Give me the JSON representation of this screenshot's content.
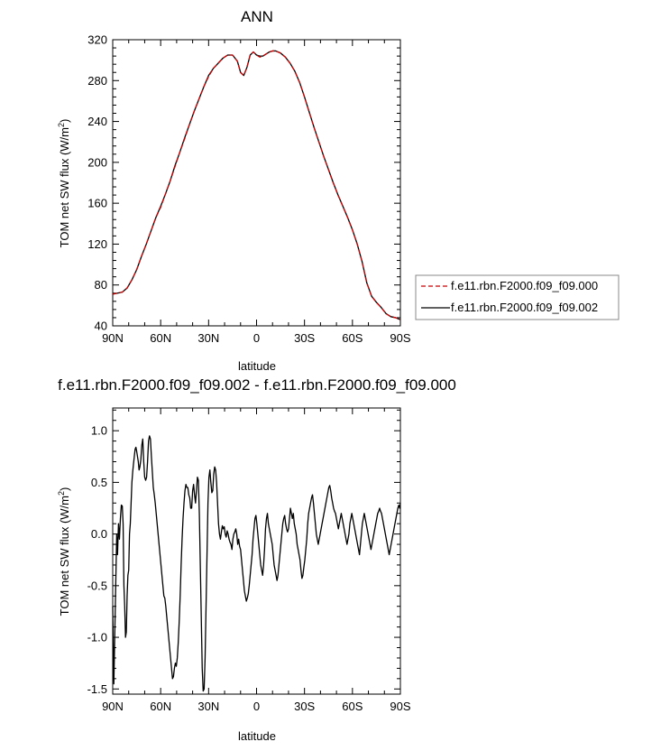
{
  "chart_data": [
    {
      "type": "line",
      "title": "ANN",
      "xlabel": "latitude",
      "ylabel_main": "TOM net SW flux (W/m",
      "ylabel_sup": "2",
      "ylabel_close": ")",
      "xlim": [
        90,
        -90
      ],
      "ylim": [
        40,
        320
      ],
      "x_ticks": [
        90,
        60,
        30,
        0,
        -30,
        -60,
        -90
      ],
      "x_tick_labels": [
        "90N",
        "60N",
        "30N",
        "0",
        "30S",
        "60S",
        "90S"
      ],
      "y_ticks": [
        40,
        80,
        120,
        160,
        200,
        240,
        280,
        320
      ],
      "y_tick_labels": [
        "40",
        "80",
        "120",
        "160",
        "200",
        "240",
        "280",
        "320"
      ],
      "legend_position": "right",
      "series": [
        {
          "name": "f.e11.rbn.F2000.f09_f09.000",
          "color": "#cc0000",
          "style": "dashed",
          "x": [
            90,
            87,
            84,
            81,
            78,
            75,
            72,
            69,
            66,
            63,
            60,
            57,
            54,
            51,
            48,
            45,
            42,
            39,
            36,
            33,
            30,
            27,
            24,
            21,
            18,
            15,
            12,
            10,
            8,
            6,
            4,
            2,
            0,
            -2,
            -4,
            -6,
            -8,
            -10,
            -12,
            -15,
            -18,
            -21,
            -24,
            -27,
            -30,
            -33,
            -36,
            -39,
            -42,
            -45,
            -48,
            -51,
            -54,
            -57,
            -60,
            -63,
            -66,
            -69,
            -72,
            -75,
            -78,
            -81,
            -84,
            -87,
            -90
          ],
          "y": [
            71,
            72,
            73,
            77,
            85,
            95,
            108,
            120,
            133,
            146,
            156,
            169,
            182,
            196,
            210,
            223,
            237,
            250,
            262,
            274,
            284,
            292,
            297,
            302,
            305,
            305,
            299,
            288,
            285,
            293,
            305,
            308,
            305,
            303,
            304,
            306,
            308,
            309,
            309,
            307,
            303,
            297,
            289,
            278,
            264,
            249,
            234,
            220,
            206,
            193,
            180,
            168,
            157,
            146,
            134,
            120,
            103,
            82,
            69,
            63,
            58,
            52,
            49,
            48,
            46
          ]
        },
        {
          "name": "f.e11.rbn.F2000.f09_f09.002",
          "color": "#000000",
          "style": "solid",
          "x": [
            90,
            87,
            84,
            81,
            78,
            75,
            72,
            69,
            66,
            63,
            60,
            57,
            54,
            51,
            48,
            45,
            42,
            39,
            36,
            33,
            30,
            27,
            24,
            21,
            18,
            15,
            12,
            10,
            8,
            6,
            4,
            2,
            0,
            -2,
            -4,
            -6,
            -8,
            -10,
            -12,
            -15,
            -18,
            -21,
            -24,
            -27,
            -30,
            -33,
            -36,
            -39,
            -42,
            -45,
            -48,
            -51,
            -54,
            -57,
            -60,
            -63,
            -66,
            -69,
            -72,
            -75,
            -78,
            -81,
            -84,
            -87,
            -90
          ],
          "y": [
            71,
            72,
            73,
            77,
            85,
            95,
            108,
            120,
            133,
            146,
            157,
            169,
            182,
            197,
            210,
            224,
            237,
            250,
            262,
            274,
            285,
            292,
            297,
            302,
            305,
            305,
            299,
            288,
            285,
            293,
            305,
            308,
            305,
            304,
            304,
            306,
            308,
            309,
            309,
            307,
            303,
            297,
            289,
            278,
            264,
            249,
            234,
            220,
            206,
            193,
            180,
            168,
            157,
            146,
            134,
            120,
            103,
            82,
            69,
            63,
            58,
            52,
            49,
            48,
            46
          ]
        }
      ]
    },
    {
      "type": "line",
      "title": "f.e11.rbn.F2000.f09_f09.002 - f.e11.rbn.F2000.f09_f09.000",
      "xlabel": "latitude",
      "ylabel_main": "TOM net SW flux (W/m",
      "ylabel_sup": "2",
      "ylabel_close": ")",
      "xlim": [
        90,
        -90
      ],
      "ylim": [
        -1.55,
        1.22
      ],
      "x_ticks": [
        90,
        60,
        30,
        0,
        -30,
        -60,
        -90
      ],
      "x_tick_labels": [
        "90N",
        "60N",
        "30N",
        "0",
        "30S",
        "60S",
        "90S"
      ],
      "y_ticks": [
        -1.5,
        -1.0,
        -0.5,
        0.0,
        0.5,
        1.0
      ],
      "y_tick_labels": [
        "-1.5",
        "-1.0",
        "-0.5",
        "0.0",
        "0.5",
        "1.0"
      ],
      "series": [
        {
          "color": "#000000",
          "style": "solid",
          "x": [
            90,
            89.3,
            88.5,
            88,
            87.5,
            87,
            86.4,
            85.8,
            85.2,
            84.6,
            84,
            83.5,
            83,
            82.5,
            82,
            81.5,
            81,
            80.5,
            80,
            79.5,
            79,
            78.5,
            78,
            77.5,
            77,
            76.5,
            76,
            75.5,
            75,
            74.5,
            74,
            73.5,
            73,
            72.4,
            71.8,
            71.2,
            70.6,
            70,
            69.4,
            68.8,
            68.2,
            67.6,
            67,
            66.4,
            65.8,
            65.2,
            64.6,
            64,
            63.4,
            62.8,
            62.2,
            61.6,
            61,
            60.4,
            59.8,
            59.2,
            58.6,
            58,
            57.4,
            56.8,
            56.2,
            55.6,
            55,
            54.4,
            53.8,
            53.2,
            52.6,
            52,
            51.4,
            50.8,
            50.2,
            49.6,
            49,
            48.4,
            47.8,
            47.2,
            46.6,
            46,
            45.4,
            44.8,
            44.2,
            43.6,
            43,
            42.4,
            41.8,
            41.2,
            40.6,
            40,
            39.4,
            38.8,
            38.2,
            37.6,
            37,
            36.4,
            35.8,
            35.2,
            34.6,
            34,
            33.4,
            32.8,
            32.2,
            31.6,
            31,
            30.4,
            29.8,
            29.2,
            28.6,
            28,
            27.4,
            26.8,
            26.2,
            25.6,
            25,
            24.4,
            23.8,
            23.2,
            22.6,
            22,
            21.4,
            20.8,
            20.2,
            19.6,
            19,
            18.4,
            17.8,
            17.2,
            16.6,
            16,
            15.4,
            14.8,
            14.2,
            13.6,
            13,
            12.4,
            11.8,
            11.2,
            10.6,
            10,
            9.4,
            8.8,
            8.2,
            7.6,
            7,
            6.4,
            5.8,
            5.2,
            4.6,
            4,
            3.4,
            2.8,
            2.2,
            1.6,
            1,
            0.4,
            -0.2,
            -0.8,
            -1.4,
            -2,
            -2.6,
            -3.2,
            -3.8,
            -4.4,
            -5,
            -5.6,
            -6.2,
            -6.8,
            -7.4,
            -8,
            -8.6,
            -9.2,
            -9.8,
            -10.4,
            -11,
            -11.6,
            -12.2,
            -12.8,
            -13.4,
            -14,
            -14.6,
            -15.2,
            -15.8,
            -16.4,
            -17,
            -17.6,
            -18.2,
            -18.8,
            -19.4,
            -20,
            -20.6,
            -21.2,
            -21.8,
            -22.4,
            -23,
            -23.6,
            -24.2,
            -24.8,
            -25.4,
            -26,
            -26.6,
            -27.2,
            -27.8,
            -28.4,
            -29,
            -29.6,
            -30.2,
            -30.8,
            -31.4,
            -32,
            -32.6,
            -33.2,
            -33.8,
            -34.4,
            -35,
            -35.6,
            -36.2,
            -36.8,
            -37.4,
            -38,
            -38.6,
            -39.2,
            -39.8,
            -40.4,
            -41,
            -41.6,
            -42.2,
            -42.8,
            -43.4,
            -44,
            -44.6,
            -45.2,
            -45.8,
            -46.4,
            -47,
            -47.6,
            -48.2,
            -48.8,
            -49.4,
            -50,
            -50.6,
            -51.2,
            -51.8,
            -52.4,
            -53,
            -53.6,
            -54.2,
            -54.8,
            -55.4,
            -56,
            -56.6,
            -57.2,
            -57.8,
            -58.4,
            -59,
            -59.6,
            -60.2,
            -60.8,
            -61.4,
            -62,
            -62.6,
            -63.2,
            -63.8,
            -64.4,
            -65,
            -65.6,
            -66.2,
            -66.8,
            -67.4,
            -68,
            -68.6,
            -69.2,
            -69.8,
            -70.4,
            -71,
            -71.6,
            -72.2,
            -72.8,
            -73.4,
            -74,
            -74.6,
            -75.2,
            -75.8,
            -76.4,
            -77,
            -77.6,
            -78.2,
            -78.8,
            -79.4,
            -80,
            -80.6,
            -81.2,
            -81.8,
            -82.4,
            -83,
            -83.6,
            -84.2,
            -84.8,
            -85.4,
            -86,
            -86.6,
            -87.2,
            -87.8,
            -88.4,
            -89,
            -89.6,
            -90
          ],
          "y": [
            -0.7,
            -1.45,
            -0.8,
            -0.4,
            0.0,
            -0.2,
            0.1,
            -0.05,
            0.15,
            0.28,
            0.27,
            0.1,
            -0.5,
            -0.7,
            -1.0,
            -0.95,
            -0.6,
            -0.4,
            -0.35,
            0.0,
            0.1,
            0.3,
            0.5,
            0.6,
            0.68,
            0.75,
            0.82,
            0.84,
            0.8,
            0.75,
            0.7,
            0.62,
            0.65,
            0.72,
            0.86,
            0.92,
            0.7,
            0.55,
            0.52,
            0.55,
            0.7,
            0.9,
            0.95,
            0.92,
            0.75,
            0.6,
            0.45,
            0.38,
            0.3,
            0.2,
            0.1,
            0.0,
            -0.1,
            -0.2,
            -0.3,
            -0.4,
            -0.5,
            -0.6,
            -0.62,
            -0.7,
            -0.8,
            -0.9,
            -1.0,
            -1.1,
            -1.2,
            -1.3,
            -1.4,
            -1.38,
            -1.3,
            -1.25,
            -1.28,
            -1.2,
            -1.05,
            -0.85,
            -0.6,
            -0.3,
            -0.05,
            0.15,
            0.3,
            0.42,
            0.48,
            0.45,
            0.45,
            0.38,
            0.35,
            0.25,
            0.25,
            0.42,
            0.48,
            0.38,
            0.3,
            0.42,
            0.55,
            0.52,
            0.2,
            -0.3,
            -0.8,
            -1.3,
            -1.52,
            -1.5,
            -1.2,
            -0.7,
            -0.2,
            0.3,
            0.55,
            0.62,
            0.5,
            0.4,
            0.42,
            0.58,
            0.65,
            0.62,
            0.5,
            0.3,
            0.1,
            0.0,
            -0.05,
            0.02,
            0.08,
            0.05,
            0.07,
            0.0,
            -0.03,
            0.03,
            0.0,
            -0.05,
            -0.08,
            -0.1,
            -0.15,
            -0.05,
            0.0,
            0.02,
            0.05,
            0.0,
            -0.1,
            -0.05,
            -0.12,
            -0.15,
            -0.25,
            -0.35,
            -0.45,
            -0.55,
            -0.6,
            -0.65,
            -0.62,
            -0.58,
            -0.5,
            -0.4,
            -0.3,
            -0.2,
            -0.05,
            0.05,
            0.15,
            0.18,
            0.1,
            0.0,
            -0.1,
            -0.2,
            -0.3,
            -0.35,
            -0.4,
            -0.3,
            -0.15,
            0.05,
            0.15,
            0.2,
            0.1,
            0.05,
            0.0,
            -0.05,
            -0.1,
            -0.2,
            -0.3,
            -0.35,
            -0.4,
            -0.45,
            -0.4,
            -0.3,
            -0.2,
            -0.1,
            0.0,
            0.1,
            0.15,
            0.18,
            0.1,
            0.05,
            0.02,
            0.05,
            0.15,
            0.25,
            0.2,
            0.15,
            0.2,
            0.1,
            0.05,
            0.0,
            -0.1,
            -0.15,
            -0.2,
            -0.25,
            -0.35,
            -0.43,
            -0.4,
            -0.32,
            -0.25,
            -0.15,
            -0.05,
            0.1,
            0.2,
            0.25,
            0.3,
            0.35,
            0.38,
            0.3,
            0.2,
            0.1,
            0.0,
            -0.05,
            -0.1,
            -0.05,
            0.0,
            0.05,
            0.1,
            0.15,
            0.2,
            0.25,
            0.3,
            0.35,
            0.4,
            0.45,
            0.47,
            0.42,
            0.35,
            0.3,
            0.25,
            0.22,
            0.2,
            0.15,
            0.1,
            0.05,
            0.1,
            0.15,
            0.2,
            0.15,
            0.1,
            0.05,
            0.0,
            -0.05,
            -0.1,
            -0.05,
            0.0,
            0.1,
            0.15,
            0.2,
            0.15,
            0.1,
            0.05,
            0.0,
            -0.05,
            -0.1,
            -0.15,
            -0.2,
            -0.1,
            0.0,
            0.1,
            0.15,
            0.2,
            0.15,
            0.1,
            0.05,
            0.0,
            -0.05,
            -0.1,
            -0.15,
            -0.1,
            -0.05,
            0.0,
            0.05,
            0.1,
            0.15,
            0.2,
            0.22,
            0.25,
            0.22,
            0.2,
            0.15,
            0.1,
            0.05,
            0.0,
            -0.05,
            -0.1,
            -0.15,
            -0.2,
            -0.15,
            -0.1,
            -0.05,
            0.0,
            0.05,
            0.1,
            0.15,
            0.2,
            0.25,
            0.28,
            0.25,
            0.3
          ]
        }
      ]
    }
  ]
}
